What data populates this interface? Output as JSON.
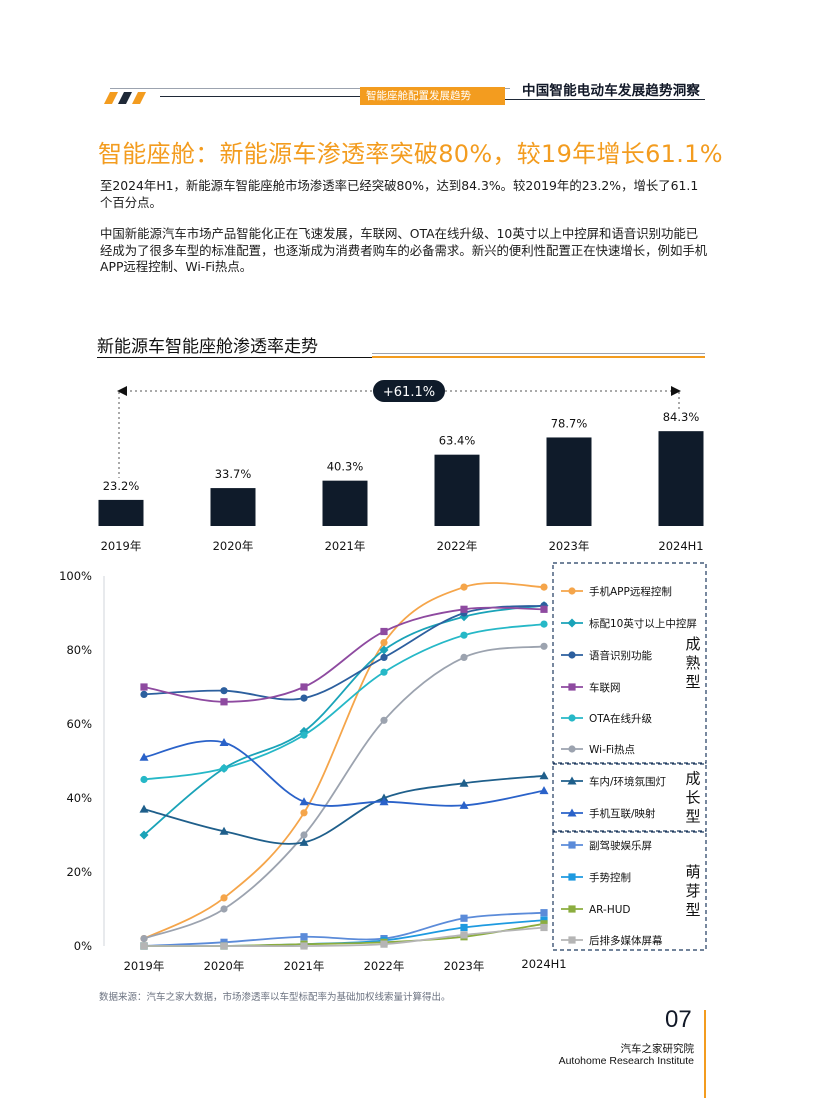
{
  "header": {
    "section_tab": "智能座舱配置发展趋势",
    "report_title": "中国智能电动车发展趋势洞察"
  },
  "title": "智能座舱：新能源车渗透率突破80%，较19年增长61.1%",
  "paragraphs": [
    "至2024年H1，新能源车智能座舱市场渗透率已经突破80%，达到84.3%。较2019年的23.2%，增长了61.1个百分点。",
    "中国新能源汽车市场产品智能化正在飞速发展，车联网、OTA在线升级、10英寸以上中控屏和语音识别功能已经成为了很多车型的标准配置，也逐渐成为消费者购车的必备需求。新兴的便利性配置正在快速增长，例如手机APP远程控制、Wi-Fi热点。"
  ],
  "section_title": "新能源车智能座舱渗透率走势",
  "growth_badge": "+61.1%",
  "chart_data": [
    {
      "type": "bar",
      "categories": [
        "2019年",
        "2020年",
        "2021年",
        "2022年",
        "2023年",
        "2024H1"
      ],
      "values": [
        23.2,
        33.7,
        40.3,
        63.4,
        78.7,
        84.3
      ],
      "value_labels": [
        "23.2%",
        "33.7%",
        "40.3%",
        "63.4%",
        "78.7%",
        "84.3%"
      ],
      "color": "#0f1b2a",
      "annotation": "+61.1%"
    },
    {
      "type": "line",
      "x": [
        "2019年",
        "2020年",
        "2021年",
        "2022年",
        "2023年",
        "2024H1"
      ],
      "ylim": [
        0,
        100
      ],
      "yticks": [
        "0%",
        "20%",
        "40%",
        "60%",
        "80%",
        "100%"
      ],
      "groups": [
        {
          "label": "成熟型",
          "series": [
            "手机APP远程控制",
            "标配10英寸以上中控屏",
            "语音识别功能",
            "车联网",
            "OTA在线升级",
            "Wi-Fi热点"
          ]
        },
        {
          "label": "成长型",
          "series": [
            "车内/环境氛围灯",
            "手机互联/映射"
          ]
        },
        {
          "label": "萌芽型",
          "series": [
            "副驾驶娱乐屏",
            "手势控制",
            "AR-HUD",
            "后排多媒体屏幕"
          ]
        }
      ],
      "series": [
        {
          "name": "手机APP远程控制",
          "color": "#f5a54a",
          "marker": "circle",
          "values": [
            2,
            13,
            36,
            82,
            97,
            97
          ]
        },
        {
          "name": "标配10英寸以上中控屏",
          "color": "#1aa3b8",
          "marker": "diamond",
          "values": [
            30,
            48,
            58,
            80,
            89,
            92
          ]
        },
        {
          "name": "语音识别功能",
          "color": "#2c5f9e",
          "marker": "circle",
          "values": [
            68,
            69,
            67,
            78,
            90,
            92
          ]
        },
        {
          "name": "车联网",
          "color": "#8e4aa0",
          "marker": "square",
          "values": [
            70,
            66,
            70,
            85,
            91,
            91
          ]
        },
        {
          "name": "OTA在线升级",
          "color": "#26b8c7",
          "marker": "circle",
          "values": [
            45,
            48,
            57,
            74,
            84,
            87
          ]
        },
        {
          "name": "Wi-Fi热点",
          "color": "#9ca3af",
          "marker": "circle",
          "values": [
            2,
            10,
            30,
            61,
            78,
            81
          ]
        },
        {
          "name": "车内/环境氛围灯",
          "color": "#1f5f8b",
          "marker": "triangle",
          "values": [
            37,
            31,
            28,
            40,
            44,
            46
          ]
        },
        {
          "name": "手机互联/映射",
          "color": "#2a62c9",
          "marker": "triangle",
          "values": [
            51,
            55,
            39,
            39,
            38,
            42
          ]
        },
        {
          "name": "副驾驶娱乐屏",
          "color": "#5b8bd9",
          "marker": "square",
          "values": [
            0,
            1,
            2.5,
            2,
            7.5,
            9
          ]
        },
        {
          "name": "手势控制",
          "color": "#1e9ae0",
          "marker": "square",
          "values": [
            0,
            0,
            0.5,
            1.5,
            5,
            7
          ]
        },
        {
          "name": "AR-HUD",
          "color": "#8bad3f",
          "marker": "square",
          "values": [
            0,
            0,
            0.5,
            1,
            2.5,
            6
          ]
        },
        {
          "name": "后排多媒体屏幕",
          "color": "#b5b5b5",
          "marker": "square",
          "values": [
            0,
            0,
            0,
            0.5,
            3,
            5
          ]
        }
      ]
    }
  ],
  "source": "数据来源：汽车之家大数据，市场渗透率以车型标配率为基础加权线索量计算得出。",
  "footer": {
    "page_number": "07",
    "org_cn": "汽车之家研究院",
    "org_en": "Autohome Research Institute"
  },
  "colors": {
    "accent": "#f39c1f",
    "bar": "#0f1b2a",
    "text": "#1a1a1a"
  }
}
